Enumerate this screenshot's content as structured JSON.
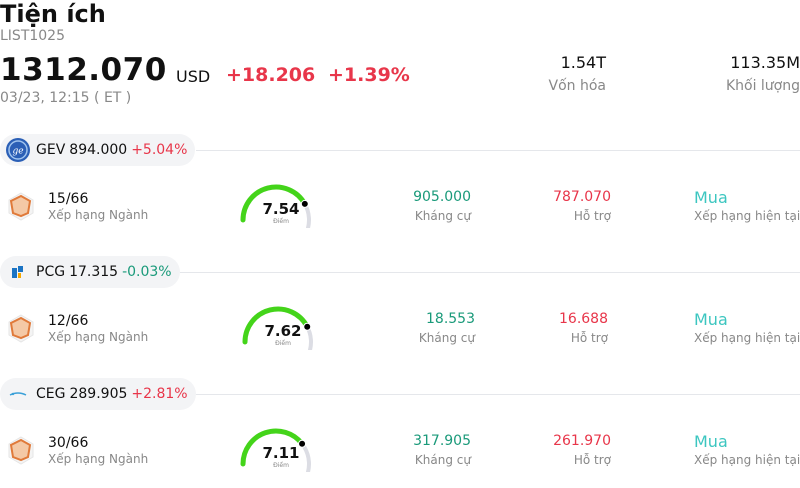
{
  "header": {
    "title": "Tiện ích",
    "code": "LIST1025",
    "price": "1312.070",
    "currency": "USD",
    "change": "+18.206",
    "change_pct": "+1.39%",
    "datetime": "03/23, 12:15  ( ET )",
    "market_cap_value": "1.54T",
    "market_cap_label": "Vốn hóa",
    "volume_value": "113.35M",
    "volume_label": "Khối lượng"
  },
  "stocks": [
    {
      "ticker": "GEV",
      "price": "894.000",
      "change": "+5.04%",
      "change_color": "red",
      "logo": "ge-logo-icon",
      "rank": "15/66",
      "rank_label": "Xếp hạng Ngành",
      "score": "7.54",
      "score_value": 7.54,
      "score_label": "Điểm",
      "resistance": "905.000",
      "resistance_label": "Kháng cự",
      "support": "787.070",
      "support_label": "Hỗ trợ",
      "rating": "Mua",
      "rating_label": "Xếp hạng hiện tại"
    },
    {
      "ticker": "PCG",
      "price": "17.315",
      "change": "-0.03%",
      "change_color": "green",
      "logo": "pge-logo-icon",
      "rank": "12/66",
      "rank_label": "Xếp hạng Ngành",
      "score": "7.62",
      "score_value": 7.62,
      "score_label": "Điểm",
      "resistance": "18.553",
      "resistance_label": "Kháng cự",
      "support": "16.688",
      "support_label": "Hỗ trợ",
      "rating": "Mua",
      "rating_label": "Xếp hạng hiện tại"
    },
    {
      "ticker": "CEG",
      "price": "289.905",
      "change": "+2.81%",
      "change_color": "red",
      "logo": "constellation-logo-icon",
      "rank": "30/66",
      "rank_label": "Xếp hạng Ngành",
      "score": "7.11",
      "score_value": 7.11,
      "score_label": "Điểm",
      "resistance": "317.905",
      "resistance_label": "Kháng cự",
      "support": "261.970",
      "support_label": "Hỗ trợ",
      "rating": "Mua",
      "rating_label": "Xếp hạng hiện tại"
    }
  ],
  "colors": {
    "up": "#e8364a",
    "down": "#1a9a7a",
    "gauge_fill": "#44d41a",
    "gauge_track": "#dcdde4",
    "buy": "#3cc6c0",
    "hex": "#e07a3a"
  }
}
